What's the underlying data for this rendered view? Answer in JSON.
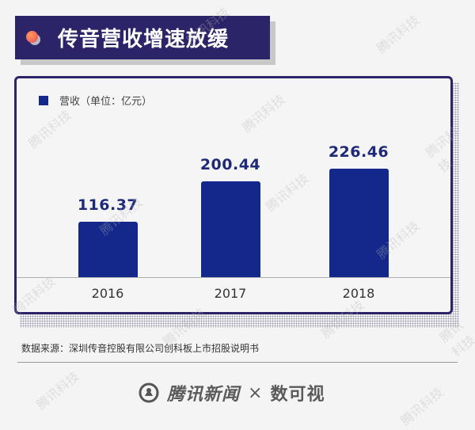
{
  "title": "传音营收增速放缓",
  "legend": {
    "label": "营收（单位：亿元）",
    "color": "#13288a"
  },
  "chart_data": {
    "type": "bar",
    "title": "传音营收增速放缓",
    "categories": [
      "2016",
      "2017",
      "2018"
    ],
    "series": [
      {
        "name": "营收（单位：亿元）",
        "values": [
          116.37,
          200.44,
          226.46
        ],
        "color": "#13288a"
      }
    ],
    "value_labels": [
      "116.37",
      "200.44",
      "226.46"
    ],
    "xlabel": "",
    "ylabel": "营收（亿元）",
    "ylim": [
      0,
      250
    ],
    "grid": false,
    "legend_position": "top-left"
  },
  "source": "数据来源：深圳传音控股有限公司创科板上市招股说明书",
  "footer": {
    "brand": "腾讯新闻",
    "separator": "×",
    "partner": "数可视"
  },
  "watermark": "腾讯科技",
  "colors": {
    "title_bg": "#2c2468",
    "bar": "#13288a",
    "value_text": "#1e2a78",
    "background": "#f4f4f4"
  }
}
